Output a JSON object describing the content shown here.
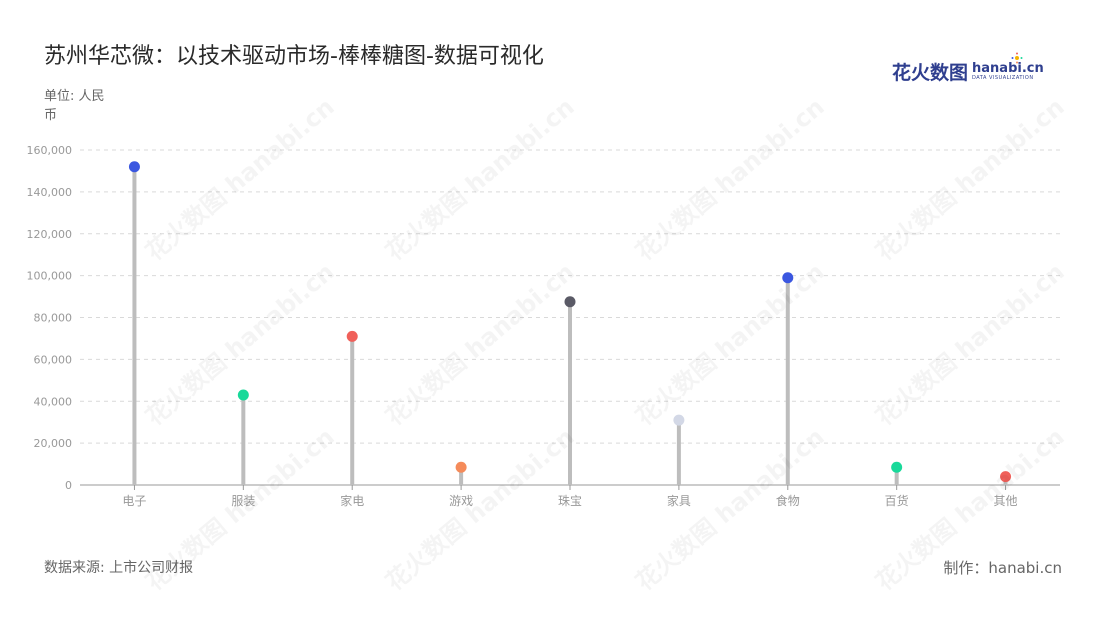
{
  "title": "苏州华芯微：以技术驱动市场-棒棒糖图-数据可视化",
  "unit_label": "单位: 人民币",
  "source_label": "数据来源: 上市公司财报",
  "credit_label": "制作：hanabi.cn",
  "logo": {
    "cn": "花火数图",
    "en": "hanabi.cn",
    "en_sub": "DATA VISUALIZATION"
  },
  "watermark_text": "花火数图 hanabi.cn",
  "colors": {
    "stem": "#bdbdbd",
    "grid": "#d9d9d9",
    "axis_text": "#999999"
  },
  "chart_data": {
    "type": "lollipop",
    "title": "苏州华芯微：以技术驱动市场-棒棒糖图-数据可视化",
    "ylabel": "单位: 人民币",
    "ylim": [
      0,
      160000
    ],
    "yticks": [
      0,
      20000,
      40000,
      60000,
      80000,
      100000,
      120000,
      140000,
      160000
    ],
    "ytick_labels": [
      "0",
      "20,000",
      "40,000",
      "60,000",
      "80,000",
      "100,000",
      "120,000",
      "140,000",
      "160,000"
    ],
    "grid": "horizontal dashed",
    "categories": [
      "电子",
      "服装",
      "家电",
      "游戏",
      "珠宝",
      "家具",
      "食物",
      "百货",
      "其他"
    ],
    "values": [
      152000,
      43000,
      71000,
      8500,
      87500,
      31000,
      99000,
      8500,
      4000
    ],
    "point_colors": [
      "#3b57e0",
      "#19d99a",
      "#f0605a",
      "#f58b5a",
      "#5a5a66",
      "#d3d8e6",
      "#3b57e0",
      "#19d99a",
      "#f0605a"
    ]
  }
}
